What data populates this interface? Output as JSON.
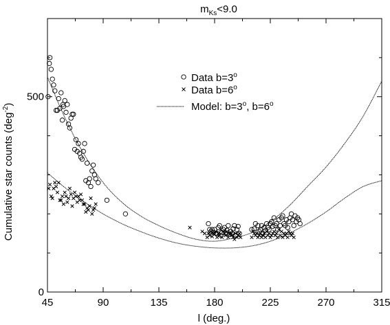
{
  "chart_data": {
    "type": "scatter",
    "title_parts": [
      "m",
      "Ks",
      "<9.0"
    ],
    "xlabel": "l (deg.)",
    "ylabel_parts": [
      "Cumulative star counts (deg",
      "-2",
      ")"
    ],
    "xlim": [
      45,
      315
    ],
    "ylim": [
      0,
      700
    ],
    "x_ticks": [
      45,
      90,
      135,
      180,
      225,
      270,
      315
    ],
    "y_ticks": [
      0,
      500
    ],
    "grid": false,
    "legend_position": "top-center",
    "legend": [
      {
        "marker": "circle",
        "parts": [
          "Data b=3",
          "o"
        ]
      },
      {
        "marker": "cross",
        "parts": [
          "Data b=6",
          "o"
        ]
      },
      {
        "marker": "dotted-line",
        "parts": [
          "Model: b=3",
          "o",
          ", b=6",
          "o"
        ]
      }
    ],
    "series": [
      {
        "marker": "circle",
        "points": [
          [
            45.5,
            500
          ],
          [
            46.5,
            585
          ],
          [
            47,
            600
          ],
          [
            48,
            570
          ],
          [
            49,
            545
          ],
          [
            50,
            530
          ],
          [
            51,
            515
          ],
          [
            52,
            465
          ],
          [
            53,
            465
          ],
          [
            54,
            495
          ],
          [
            55,
            470
          ],
          [
            56,
            510
          ],
          [
            57,
            440
          ],
          [
            57.5,
            480
          ],
          [
            58,
            475
          ],
          [
            59,
            490
          ],
          [
            60,
            460
          ],
          [
            61,
            480
          ],
          [
            62,
            430
          ],
          [
            63,
            420
          ],
          [
            64,
            445
          ],
          [
            65,
            455
          ],
          [
            66,
            455
          ],
          [
            67,
            365
          ],
          [
            68,
            390
          ],
          [
            69,
            360
          ],
          [
            70,
            380
          ],
          [
            71,
            355
          ],
          [
            72,
            345
          ],
          [
            73,
            340
          ],
          [
            74,
            360
          ],
          [
            75,
            380
          ],
          [
            76,
            285
          ],
          [
            77,
            330
          ],
          [
            78,
            280
          ],
          [
            79,
            290
          ],
          [
            80,
            270
          ],
          [
            81,
            310
          ],
          [
            82,
            325
          ],
          [
            83,
            300
          ],
          [
            84,
            290
          ],
          [
            86,
            280
          ],
          [
            93,
            235
          ],
          [
            108,
            200
          ],
          [
            175,
            175
          ],
          [
            176,
            160
          ],
          [
            177,
            155
          ],
          [
            178,
            160
          ],
          [
            179,
            153
          ],
          [
            180,
            160
          ],
          [
            181,
            150
          ],
          [
            182,
            150
          ],
          [
            183,
            165
          ],
          [
            184,
            170
          ],
          [
            185,
            145
          ],
          [
            186,
            152
          ],
          [
            187,
            160
          ],
          [
            188,
            165
          ],
          [
            189,
            150
          ],
          [
            190,
            158
          ],
          [
            191,
            170
          ],
          [
            192,
            148
          ],
          [
            193,
            155
          ],
          [
            194,
            150
          ],
          [
            195,
            162
          ],
          [
            196,
            170
          ],
          [
            197,
            145
          ],
          [
            198,
            160
          ],
          [
            199,
            168
          ],
          [
            200,
            150
          ],
          [
            210,
            160
          ],
          [
            212,
            162
          ],
          [
            213,
            175
          ],
          [
            215,
            170
          ],
          [
            216,
            155
          ],
          [
            217,
            160
          ],
          [
            218,
            170
          ],
          [
            219,
            150
          ],
          [
            220,
            165
          ],
          [
            221,
            158
          ],
          [
            222,
            175
          ],
          [
            223,
            165
          ],
          [
            224,
            160
          ],
          [
            225,
            175
          ],
          [
            226,
            180
          ],
          [
            227,
            168
          ],
          [
            228,
            190
          ],
          [
            229,
            170
          ],
          [
            230,
            175
          ],
          [
            231,
            160
          ],
          [
            232,
            185
          ],
          [
            233,
            170
          ],
          [
            234,
            190
          ],
          [
            235,
            195
          ],
          [
            236,
            175
          ],
          [
            237,
            170
          ],
          [
            238,
            185
          ],
          [
            239,
            165
          ],
          [
            240,
            180
          ],
          [
            241,
            190
          ],
          [
            242,
            200
          ],
          [
            243,
            185
          ],
          [
            244,
            170
          ],
          [
            245,
            195
          ],
          [
            246,
            180
          ],
          [
            247,
            190
          ],
          [
            248,
            185
          ],
          [
            249,
            175
          ]
        ]
      },
      {
        "marker": "cross",
        "points": [
          [
            46,
            265
          ],
          [
            47,
            275
          ],
          [
            48,
            245
          ],
          [
            49,
            240
          ],
          [
            50,
            265
          ],
          [
            51,
            280
          ],
          [
            52,
            270
          ],
          [
            53,
            255
          ],
          [
            54,
            280
          ],
          [
            55,
            235
          ],
          [
            56,
            235
          ],
          [
            57,
            245
          ],
          [
            58,
            225
          ],
          [
            59,
            255
          ],
          [
            60,
            245
          ],
          [
            61,
            230
          ],
          [
            62,
            240
          ],
          [
            63,
            265
          ],
          [
            64,
            250
          ],
          [
            65,
            220
          ],
          [
            66,
            240
          ],
          [
            67,
            255
          ],
          [
            68,
            245
          ],
          [
            69,
            230
          ],
          [
            70,
            245
          ],
          [
            71,
            235
          ],
          [
            72,
            250
          ],
          [
            73,
            235
          ],
          [
            74,
            225
          ],
          [
            75,
            225
          ],
          [
            76,
            205
          ],
          [
            77,
            215
          ],
          [
            78,
            210
          ],
          [
            79,
            220
          ],
          [
            80,
            240
          ],
          [
            81,
            200
          ],
          [
            82,
            210
          ],
          [
            83,
            215
          ],
          [
            84,
            225
          ],
          [
            160,
            165
          ],
          [
            170,
            155
          ],
          [
            172,
            150
          ],
          [
            174,
            140
          ],
          [
            175,
            150
          ],
          [
            176,
            145
          ],
          [
            177,
            155
          ],
          [
            178,
            142
          ],
          [
            179,
            150
          ],
          [
            180,
            148
          ],
          [
            181,
            155
          ],
          [
            182,
            140
          ],
          [
            183,
            150
          ],
          [
            184,
            145
          ],
          [
            185,
            160
          ],
          [
            186,
            140
          ],
          [
            187,
            155
          ],
          [
            188,
            150
          ],
          [
            189,
            145
          ],
          [
            190,
            155
          ],
          [
            191,
            140
          ],
          [
            192,
            148
          ],
          [
            193,
            150
          ],
          [
            194,
            145
          ],
          [
            195,
            140
          ],
          [
            196,
            135
          ],
          [
            197,
            150
          ],
          [
            198,
            140
          ],
          [
            199,
            145
          ],
          [
            200,
            150
          ],
          [
            201,
            140
          ],
          [
            210,
            140
          ],
          [
            211,
            155
          ],
          [
            212,
            150
          ],
          [
            213,
            145
          ],
          [
            214,
            150
          ],
          [
            215,
            140
          ],
          [
            216,
            145
          ],
          [
            217,
            150
          ],
          [
            218,
            140
          ],
          [
            219,
            145
          ],
          [
            220,
            150
          ],
          [
            221,
            140
          ],
          [
            222,
            155
          ],
          [
            223,
            145
          ],
          [
            224,
            150
          ],
          [
            225,
            140
          ],
          [
            226,
            145
          ],
          [
            227,
            150
          ],
          [
            228,
            155
          ],
          [
            229,
            145
          ],
          [
            230,
            150
          ],
          [
            231,
            140
          ],
          [
            232,
            160
          ],
          [
            233,
            145
          ],
          [
            234,
            155
          ],
          [
            235,
            140
          ],
          [
            236,
            150
          ],
          [
            237,
            145
          ],
          [
            238,
            150
          ],
          [
            239,
            140
          ],
          [
            240,
            155
          ],
          [
            241,
            150
          ],
          [
            242,
            145
          ],
          [
            243,
            150
          ],
          [
            244,
            140
          ]
        ]
      }
    ],
    "model_curves": [
      {
        "x": [
          45,
          60,
          75,
          90,
          105,
          120,
          135,
          150,
          165,
          180,
          195,
          210,
          225,
          240,
          255,
          270,
          285,
          300,
          315
        ],
        "y": [
          550,
          440,
          350,
          280,
          230,
          195,
          170,
          150,
          135,
          130,
          138,
          152,
          180,
          220,
          270,
          320,
          380,
          450,
          540
        ]
      },
      {
        "x": [
          45,
          60,
          75,
          90,
          105,
          120,
          135,
          150,
          165,
          180,
          195,
          210,
          225,
          240,
          255,
          270,
          285,
          300,
          315
        ],
        "y": [
          305,
          265,
          230,
          200,
          175,
          155,
          138,
          125,
          117,
          113,
          113,
          118,
          130,
          150,
          175,
          205,
          240,
          270,
          285
        ]
      }
    ]
  }
}
